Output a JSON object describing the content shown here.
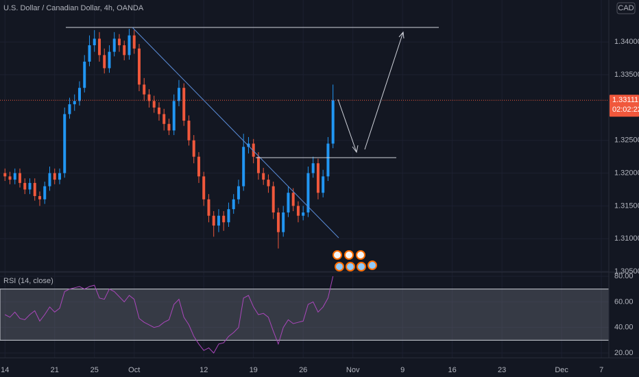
{
  "chart_data": [
    {
      "type": "candlestick",
      "title": "U.S. Dollar / Canadian Dollar, 4h, OANDA",
      "currency": "CAD",
      "last_price": 1.33111,
      "countdown": "02:02:22",
      "up_color": "#2196f3",
      "down_color": "#f0583c",
      "open": [
        1.32,
        1.3195,
        1.319,
        1.32,
        1.3185,
        1.3175,
        1.3185,
        1.3165,
        1.316,
        1.318,
        1.32,
        1.319,
        1.32,
        1.329,
        1.3305,
        1.331,
        1.333,
        1.337,
        1.3395,
        1.3405,
        1.338,
        1.336,
        1.3385,
        1.3405,
        1.3395,
        1.338,
        1.341,
        1.339,
        1.3335,
        1.332,
        1.331,
        1.33,
        1.329,
        1.3275,
        1.3265,
        1.331,
        1.333,
        1.328,
        1.325,
        1.3225,
        1.3195,
        1.316,
        1.3135,
        1.312,
        1.3135,
        1.3125,
        1.3145,
        1.316,
        1.318,
        1.324,
        1.3245,
        1.3225,
        1.32,
        1.319,
        1.318,
        1.314,
        1.311,
        1.314,
        1.317,
        1.315,
        1.3135,
        1.314,
        1.32,
        1.3215,
        1.317,
        1.3195,
        1.3245
      ],
      "high": [
        1.3207,
        1.3202,
        1.3207,
        1.3207,
        1.3192,
        1.3192,
        1.3192,
        1.3172,
        1.3187,
        1.321,
        1.3207,
        1.3207,
        1.33,
        1.3315,
        1.332,
        1.334,
        1.338,
        1.341,
        1.3418,
        1.3415,
        1.339,
        1.3395,
        1.3415,
        1.3412,
        1.3402,
        1.342,
        1.3418,
        1.3397,
        1.3345,
        1.3328,
        1.3318,
        1.3308,
        1.3298,
        1.3283,
        1.332,
        1.3342,
        1.3337,
        1.3288,
        1.3258,
        1.3232,
        1.3202,
        1.3168,
        1.3142,
        1.3145,
        1.3142,
        1.3155,
        1.3168,
        1.319,
        1.326,
        1.3255,
        1.3252,
        1.3232,
        1.3208,
        1.3198,
        1.3187,
        1.3147,
        1.315,
        1.318,
        1.3177,
        1.3157,
        1.315,
        1.321,
        1.3225,
        1.3222,
        1.3205,
        1.3255,
        1.3335
      ],
      "low": [
        1.3188,
        1.3183,
        1.3183,
        1.3178,
        1.3168,
        1.3168,
        1.3158,
        1.315,
        1.3153,
        1.3173,
        1.3183,
        1.3183,
        1.3193,
        1.3283,
        1.3295,
        1.3303,
        1.3323,
        1.3363,
        1.3385,
        1.337,
        1.3352,
        1.3353,
        1.3378,
        1.3385,
        1.3372,
        1.3373,
        1.3382,
        1.3325,
        1.331,
        1.33,
        1.3292,
        1.328,
        1.3265,
        1.3258,
        1.3258,
        1.3302,
        1.3272,
        1.3242,
        1.3215,
        1.3185,
        1.315,
        1.3125,
        1.3103,
        1.311,
        1.3112,
        1.3118,
        1.3138,
        1.3153,
        1.3173,
        1.323,
        1.3215,
        1.319,
        1.3182,
        1.317,
        1.313,
        1.3085,
        1.3103,
        1.3133,
        1.3142,
        1.3125,
        1.3128,
        1.3133,
        1.3193,
        1.316,
        1.3163,
        1.3188,
        1.3238
      ],
      "close": [
        1.3195,
        1.319,
        1.32,
        1.3185,
        1.3175,
        1.3185,
        1.3165,
        1.316,
        1.318,
        1.32,
        1.319,
        1.32,
        1.329,
        1.3305,
        1.331,
        1.333,
        1.337,
        1.3395,
        1.3405,
        1.338,
        1.336,
        1.3385,
        1.3405,
        1.3395,
        1.338,
        1.341,
        1.339,
        1.3335,
        1.332,
        1.331,
        1.33,
        1.329,
        1.3275,
        1.3265,
        1.331,
        1.333,
        1.328,
        1.325,
        1.3225,
        1.3195,
        1.316,
        1.3135,
        1.312,
        1.3135,
        1.3125,
        1.3145,
        1.316,
        1.318,
        1.324,
        1.3245,
        1.3225,
        1.32,
        1.319,
        1.318,
        1.314,
        1.311,
        1.314,
        1.317,
        1.315,
        1.3135,
        1.314,
        1.32,
        1.3215,
        1.317,
        1.3195,
        1.3245,
        1.3311
      ],
      "xlim": [
        -1,
        121.5
      ],
      "xticks": [
        {
          "value": 0,
          "label": "14"
        },
        {
          "value": 10,
          "label": "21"
        },
        {
          "value": 18,
          "label": "25"
        },
        {
          "value": 26,
          "label": "Oct"
        },
        {
          "value": 40,
          "label": "12"
        },
        {
          "value": 50,
          "label": "19"
        },
        {
          "value": 60,
          "label": "26"
        },
        {
          "value": 70,
          "label": "Nov"
        },
        {
          "value": 80,
          "label": "9"
        },
        {
          "value": 90,
          "label": "16"
        },
        {
          "value": 100,
          "label": "23"
        },
        {
          "value": 112,
          "label": "Dec"
        },
        {
          "value": 120,
          "label": "7"
        }
      ],
      "ylim": [
        1.3049,
        1.3464
      ],
      "yticks": [
        {
          "value": 1.34,
          "label": "1.34000"
        },
        {
          "value": 1.335,
          "label": "1.33500"
        },
        {
          "value": 1.325,
          "label": "1.32500"
        },
        {
          "value": 1.32,
          "label": "1.32000"
        },
        {
          "value": 1.315,
          "label": "1.31500"
        },
        {
          "value": 1.31,
          "label": "1.31000"
        },
        {
          "value": 1.305,
          "label": "1.30500"
        }
      ],
      "grid": true
    },
    {
      "type": "line",
      "title": "RSI (14, close)",
      "color": "#ab47bc",
      "band": [
        30,
        70
      ],
      "values": [
        50,
        48,
        52,
        47,
        46,
        50,
        53,
        45,
        50,
        56,
        52,
        55,
        68,
        70,
        71,
        72,
        70,
        72,
        73,
        63,
        62,
        70,
        68,
        64,
        60,
        65,
        62,
        47,
        44,
        42,
        40,
        41,
        44,
        46,
        58,
        62,
        48,
        42,
        33,
        27,
        22,
        24,
        20,
        27,
        28,
        33,
        36,
        40,
        63,
        65,
        56,
        50,
        51,
        48,
        37,
        27,
        40,
        46,
        43,
        44,
        45,
        58,
        60,
        52,
        56,
        63,
        80
      ],
      "ylim": [
        16.25,
        82.7
      ],
      "yticks": [
        {
          "value": 80,
          "label": "80.00"
        },
        {
          "value": 60,
          "label": "60.00"
        },
        {
          "value": 40,
          "label": "40.00"
        },
        {
          "value": 20,
          "label": "20.00"
        }
      ],
      "grid": true
    }
  ]
}
